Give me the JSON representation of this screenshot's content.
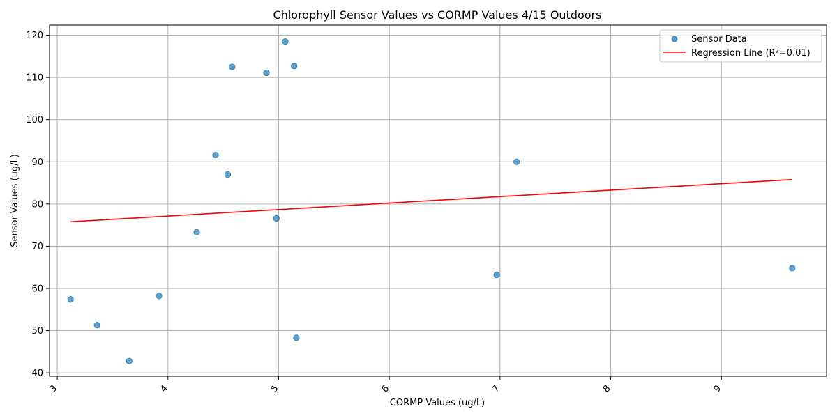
{
  "chart_data": {
    "type": "scatter",
    "title": "Chlorophyll Sensor Values vs CORMP Values 4/15 Outdoors",
    "xlabel": "CORMP Values (ug/L)",
    "ylabel": "Sensor Values (ug/L)",
    "xlim": [
      2.93,
      9.95
    ],
    "ylim": [
      39.2,
      122.4
    ],
    "x_ticks": [
      3,
      4,
      5,
      6,
      7,
      8,
      9
    ],
    "y_ticks": [
      40,
      50,
      60,
      70,
      80,
      90,
      100,
      110,
      120
    ],
    "x_tick_rotation": 45,
    "grid": true,
    "legend_position": "top-right",
    "series": [
      {
        "name": "Sensor Data",
        "kind": "scatter",
        "color": "#1f77b4",
        "points": [
          {
            "x": 3.12,
            "y": 57.4
          },
          {
            "x": 3.36,
            "y": 51.3
          },
          {
            "x": 3.65,
            "y": 42.8
          },
          {
            "x": 3.92,
            "y": 58.2
          },
          {
            "x": 4.26,
            "y": 73.3
          },
          {
            "x": 4.43,
            "y": 91.6
          },
          {
            "x": 4.54,
            "y": 87.0
          },
          {
            "x": 4.58,
            "y": 112.5
          },
          {
            "x": 4.89,
            "y": 111.1
          },
          {
            "x": 4.98,
            "y": 76.6
          },
          {
            "x": 5.06,
            "y": 118.5
          },
          {
            "x": 5.14,
            "y": 112.7
          },
          {
            "x": 5.16,
            "y": 48.3
          },
          {
            "x": 6.97,
            "y": 63.2
          },
          {
            "x": 7.15,
            "y": 90.0
          },
          {
            "x": 9.64,
            "y": 64.8
          }
        ]
      },
      {
        "name": "Regression Line (R²=0.01)",
        "kind": "line",
        "color": "#ff0000",
        "points": [
          {
            "x": 3.12,
            "y": 75.8
          },
          {
            "x": 9.64,
            "y": 85.8
          }
        ]
      }
    ]
  }
}
